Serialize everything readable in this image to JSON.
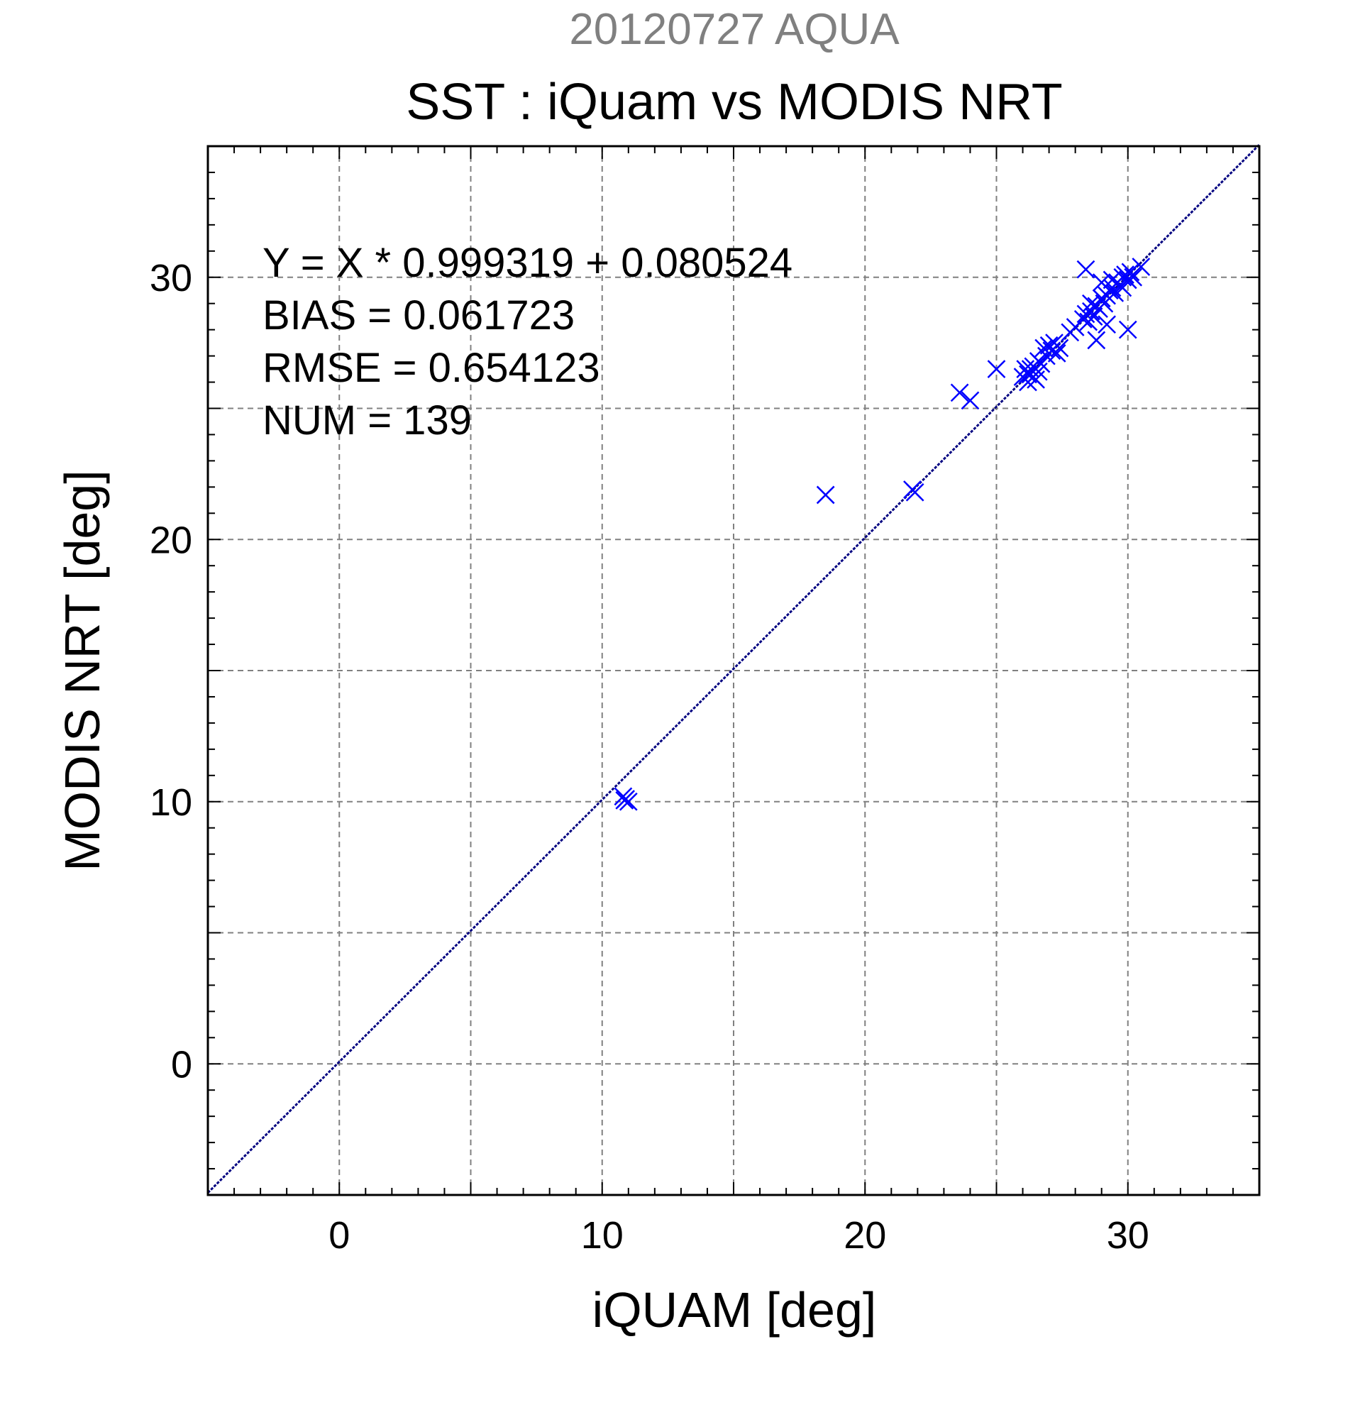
{
  "chart_data": {
    "type": "scatter",
    "supertitle": "20120727 AQUA",
    "title": "SST : iQuam vs MODIS NRT",
    "xlabel": "iQUAM [deg]",
    "ylabel": "MODIS NRT [deg]",
    "xlim": [
      -5,
      35
    ],
    "ylim": [
      -5,
      35
    ],
    "xticks": [
      0,
      10,
      20,
      30
    ],
    "yticks": [
      0,
      10,
      20,
      30
    ],
    "grid": true,
    "colors": {
      "points": "#0000ff",
      "fit_line": "#000080",
      "grid": "#808080",
      "frame": "#000000"
    },
    "stats": [
      "Y = X * 0.999319 + 0.080524",
      "BIAS = 0.061723",
      "RMSE = 0.654123",
      "NUM = 139"
    ],
    "fit": {
      "slope": 0.999319,
      "intercept": 0.080524
    },
    "series": [
      {
        "marker": "x",
        "x": [
          10.8,
          10.9,
          11.0,
          10.85,
          18.5,
          21.8,
          21.9,
          23.6,
          24.0,
          25.0,
          26.0,
          26.1,
          26.2,
          26.3,
          26.4,
          26.5,
          26.6,
          26.7,
          26.2,
          26.4,
          26.8,
          26.9,
          27.0,
          27.1,
          27.2,
          27.4,
          27.8,
          28.0,
          28.3,
          28.4,
          28.5,
          28.6,
          28.7,
          28.8,
          28.9,
          29.0,
          29.1,
          29.2,
          29.3,
          29.4,
          29.5,
          29.6,
          29.7,
          29.8,
          29.9,
          30.0,
          30.1,
          30.5,
          28.4,
          28.8,
          29.2,
          30.0,
          29.0,
          28.6,
          29.4,
          29.8,
          30.2,
          26.3,
          26.6,
          27.3
        ],
        "y": [
          10.2,
          10.1,
          10.0,
          10.05,
          21.7,
          21.9,
          21.8,
          25.6,
          25.3,
          26.5,
          26.2,
          26.5,
          26.0,
          26.3,
          26.6,
          26.1,
          26.4,
          26.7,
          26.3,
          26.2,
          27.3,
          27.0,
          27.4,
          27.2,
          27.5,
          27.3,
          27.9,
          28.1,
          28.4,
          28.6,
          28.3,
          28.7,
          28.5,
          28.9,
          28.8,
          29.2,
          29.0,
          29.3,
          29.5,
          29.6,
          29.4,
          29.8,
          29.7,
          30.0,
          30.1,
          29.9,
          30.2,
          30.4,
          30.3,
          27.6,
          28.2,
          28.0,
          29.8,
          29.0,
          29.9,
          29.6,
          30.0,
          26.5,
          26.8,
          27.1
        ]
      }
    ]
  }
}
